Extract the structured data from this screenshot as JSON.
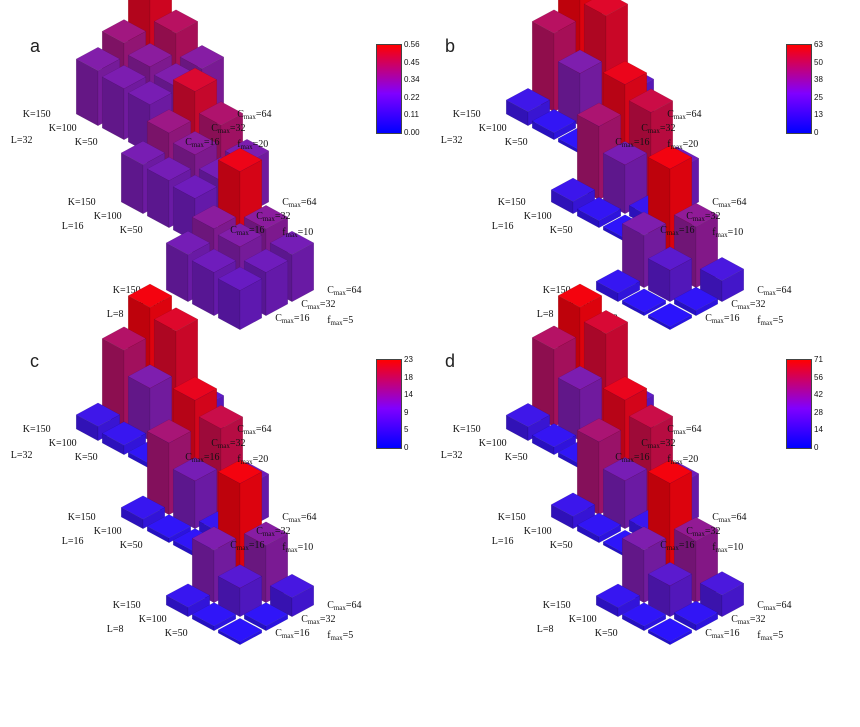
{
  "chart_data": [
    {
      "type": "bar3d",
      "panel": "a",
      "colorbar": {
        "ticks": [
          "0.56",
          "0.45",
          "0.34",
          "0.22",
          "0.11",
          "0.00"
        ],
        "max": 0.56
      },
      "groups": [
        {
          "label": "L=32",
          "k": [
            "K=150",
            "K=100",
            "K=50"
          ],
          "c": [
            "C",
            "C",
            "C"
          ],
          "c_sub": [
            "max",
            "max",
            "max"
          ],
          "c_val": [
            "=64",
            "=32",
            "=16"
          ],
          "f": "f",
          "f_sub": "max",
          "f_val": "=20",
          "values": [
            [
              0.25,
              0.27,
              0.29
            ],
            [
              0.26,
              0.3,
              0.4
            ],
            [
              0.28,
              0.35,
              0.5
            ]
          ]
        },
        {
          "label": "L=16",
          "k": [
            "K=150",
            "K=100",
            "K=50"
          ],
          "c": [
            "C",
            "C",
            "C"
          ],
          "c_sub": [
            "max",
            "max",
            "max"
          ],
          "c_val": [
            "=64",
            "=32",
            "=16"
          ],
          "f": "f",
          "f_sub": "max",
          "f_val": "=10",
          "values": [
            [
              0.22,
              0.24,
              0.26
            ],
            [
              0.24,
              0.3,
              0.38
            ],
            [
              0.25,
              0.34,
              0.48
            ]
          ]
        },
        {
          "label": "L=8",
          "k": [
            "K=150",
            "K=100",
            "K=50"
          ],
          "c": [
            "C",
            "C",
            "C"
          ],
          "c_sub": [
            "max",
            "max",
            "max"
          ],
          "c_val": [
            "=64",
            "=32",
            "=16"
          ],
          "f": "f",
          "f_sub": "max",
          "f_val": "=5",
          "values": [
            [
              0.2,
              0.22,
              0.24
            ],
            [
              0.22,
              0.28,
              0.3
            ],
            [
              0.24,
              0.3,
              0.52
            ]
          ]
        }
      ]
    },
    {
      "type": "bar3d",
      "panel": "b",
      "colorbar": {
        "ticks": [
          "63",
          "50",
          "38",
          "25",
          "13",
          "0"
        ],
        "max": 63
      },
      "groups": [
        {
          "label": "L=32",
          "k": [
            "K=150",
            "K=100",
            "K=50"
          ],
          "c": [
            "C",
            "C",
            "C"
          ],
          "c_sub": [
            "max",
            "max",
            "max"
          ],
          "c_val": [
            "=64",
            "=32",
            "=16"
          ],
          "f": "f",
          "f_sub": "max",
          "f_val": "=20",
          "values": [
            [
              2,
              6,
              20
            ],
            [
              4,
              30,
              55
            ],
            [
              8,
              45,
              60
            ]
          ]
        },
        {
          "label": "L=16",
          "k": [
            "K=150",
            "K=100",
            "K=50"
          ],
          "c": [
            "C",
            "C",
            "C"
          ],
          "c_sub": [
            "max",
            "max",
            "max"
          ],
          "c_val": [
            "=64",
            "=32",
            "=16"
          ],
          "f": "f",
          "f_sub": "max",
          "f_val": "=10",
          "values": [
            [
              2,
              6,
              25
            ],
            [
              4,
              28,
              50
            ],
            [
              7,
              42,
              58
            ]
          ]
        },
        {
          "label": "L=8",
          "k": [
            "K=150",
            "K=100",
            "K=50"
          ],
          "c": [
            "C",
            "C",
            "C"
          ],
          "c_sub": [
            "max",
            "max",
            "max"
          ],
          "c_val": [
            "=64",
            "=32",
            "=16"
          ],
          "f": "f",
          "f_sub": "max",
          "f_val": "=5",
          "values": [
            [
              1,
              3,
              12
            ],
            [
              2,
              18,
              35
            ],
            [
              5,
              30,
              60
            ]
          ]
        }
      ]
    },
    {
      "type": "bar3d",
      "panel": "c",
      "colorbar": {
        "ticks": [
          "23",
          "18",
          "14",
          "9",
          "5",
          "0"
        ],
        "max": 23
      },
      "groups": [
        {
          "label": "L=32",
          "k": [
            "K=150",
            "K=100",
            "K=50"
          ],
          "c": [
            "C",
            "C",
            "C"
          ],
          "c_sub": [
            "max",
            "max",
            "max"
          ],
          "c_val": [
            "=64",
            "=32",
            "=16"
          ],
          "f": "f",
          "f_sub": "max",
          "f_val": "=20",
          "values": [
            [
              1,
              2,
              7
            ],
            [
              2,
              11,
              20
            ],
            [
              3,
              16,
              22
            ]
          ]
        },
        {
          "label": "L=16",
          "k": [
            "K=150",
            "K=100",
            "K=50"
          ],
          "c": [
            "C",
            "C",
            "C"
          ],
          "c_sub": [
            "max",
            "max",
            "max"
          ],
          "c_val": [
            "=64",
            "=32",
            "=16"
          ],
          "f": "f",
          "f_sub": "max",
          "f_val": "=10",
          "values": [
            [
              1,
              2,
              9
            ],
            [
              1,
              10,
              18
            ],
            [
              2,
              15,
              21
            ]
          ]
        },
        {
          "label": "L=8",
          "k": [
            "K=150",
            "K=100",
            "K=50"
          ],
          "c": [
            "C",
            "C",
            "C"
          ],
          "c_sub": [
            "max",
            "max",
            "max"
          ],
          "c_val": [
            "=64",
            "=32",
            "=16"
          ],
          "f": "f",
          "f_sub": "max",
          "f_val": "=5",
          "values": [
            [
              0.5,
              1,
              4
            ],
            [
              1,
              6,
              12
            ],
            [
              2,
              11,
              22
            ]
          ]
        }
      ]
    },
    {
      "type": "bar3d",
      "panel": "d",
      "colorbar": {
        "ticks": [
          "71",
          "56",
          "42",
          "28",
          "14",
          "0"
        ],
        "max": 71
      },
      "groups": [
        {
          "label": "L=32",
          "k": [
            "K=150",
            "K=100",
            "K=50"
          ],
          "c": [
            "C",
            "C",
            "C"
          ],
          "c_sub": [
            "max",
            "max",
            "max"
          ],
          "c_val": [
            "=64",
            "=32",
            "=16"
          ],
          "f": "f",
          "f_sub": "max",
          "f_val": "=20",
          "values": [
            [
              3,
              7,
              22
            ],
            [
              5,
              33,
              60
            ],
            [
              9,
              50,
              68
            ]
          ]
        },
        {
          "label": "L=16",
          "k": [
            "K=150",
            "K=100",
            "K=50"
          ],
          "c": [
            "C",
            "C",
            "C"
          ],
          "c_sub": [
            "max",
            "max",
            "max"
          ],
          "c_val": [
            "=64",
            "=32",
            "=16"
          ],
          "f": "f",
          "f_sub": "max",
          "f_val": "=10",
          "values": [
            [
              2,
              7,
              28
            ],
            [
              4,
              31,
              56
            ],
            [
              8,
              47,
              65
            ]
          ]
        },
        {
          "label": "L=8",
          "k": [
            "K=150",
            "K=100",
            "K=50"
          ],
          "c": [
            "C",
            "C",
            "C"
          ],
          "c_sub": [
            "max",
            "max",
            "max"
          ],
          "c_val": [
            "=64",
            "=32",
            "=16"
          ],
          "f": "f",
          "f_sub": "max",
          "f_val": "=5",
          "values": [
            [
              1,
              4,
              14
            ],
            [
              3,
              20,
              40
            ],
            [
              6,
              34,
              68
            ]
          ]
        }
      ]
    }
  ]
}
